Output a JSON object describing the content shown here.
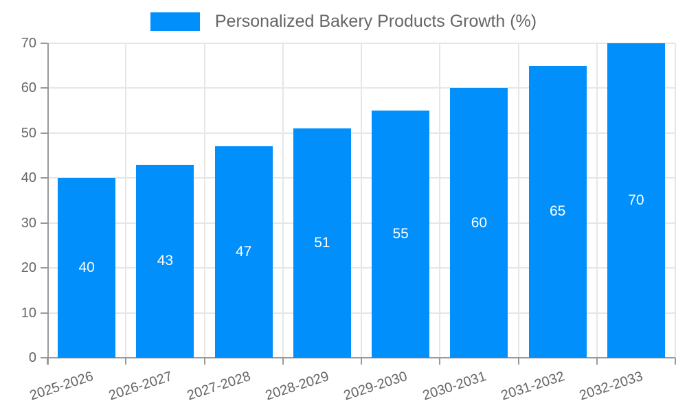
{
  "legend": {
    "label": "Personalized Bakery Products Growth (%)"
  },
  "chart_data": {
    "type": "bar",
    "title": "",
    "xlabel": "",
    "ylabel": "",
    "series_name": "Personalized Bakery Products Growth (%)",
    "categories": [
      "2025-2026",
      "2026-2027",
      "2027-2028",
      "2028-2029",
      "2029-2030",
      "2030-2031",
      "2031-2032",
      "2032-2033"
    ],
    "values": [
      40,
      43,
      47,
      51,
      55,
      60,
      65,
      70
    ],
    "data_labels": [
      "40",
      "43",
      "47",
      "51",
      "55",
      "60",
      "65",
      "70"
    ],
    "ylim": [
      0,
      70
    ],
    "yticks": [
      0,
      10,
      20,
      30,
      40,
      50,
      60,
      70
    ],
    "grid": "both",
    "legend_position": "top",
    "bar_color": "#008FFB",
    "data_label_color": "#ffffff",
    "axis_text_color": "#666666",
    "grid_color": "#e6e6e6",
    "axis_line_color": "#999999",
    "background_color": "#ffffff"
  }
}
